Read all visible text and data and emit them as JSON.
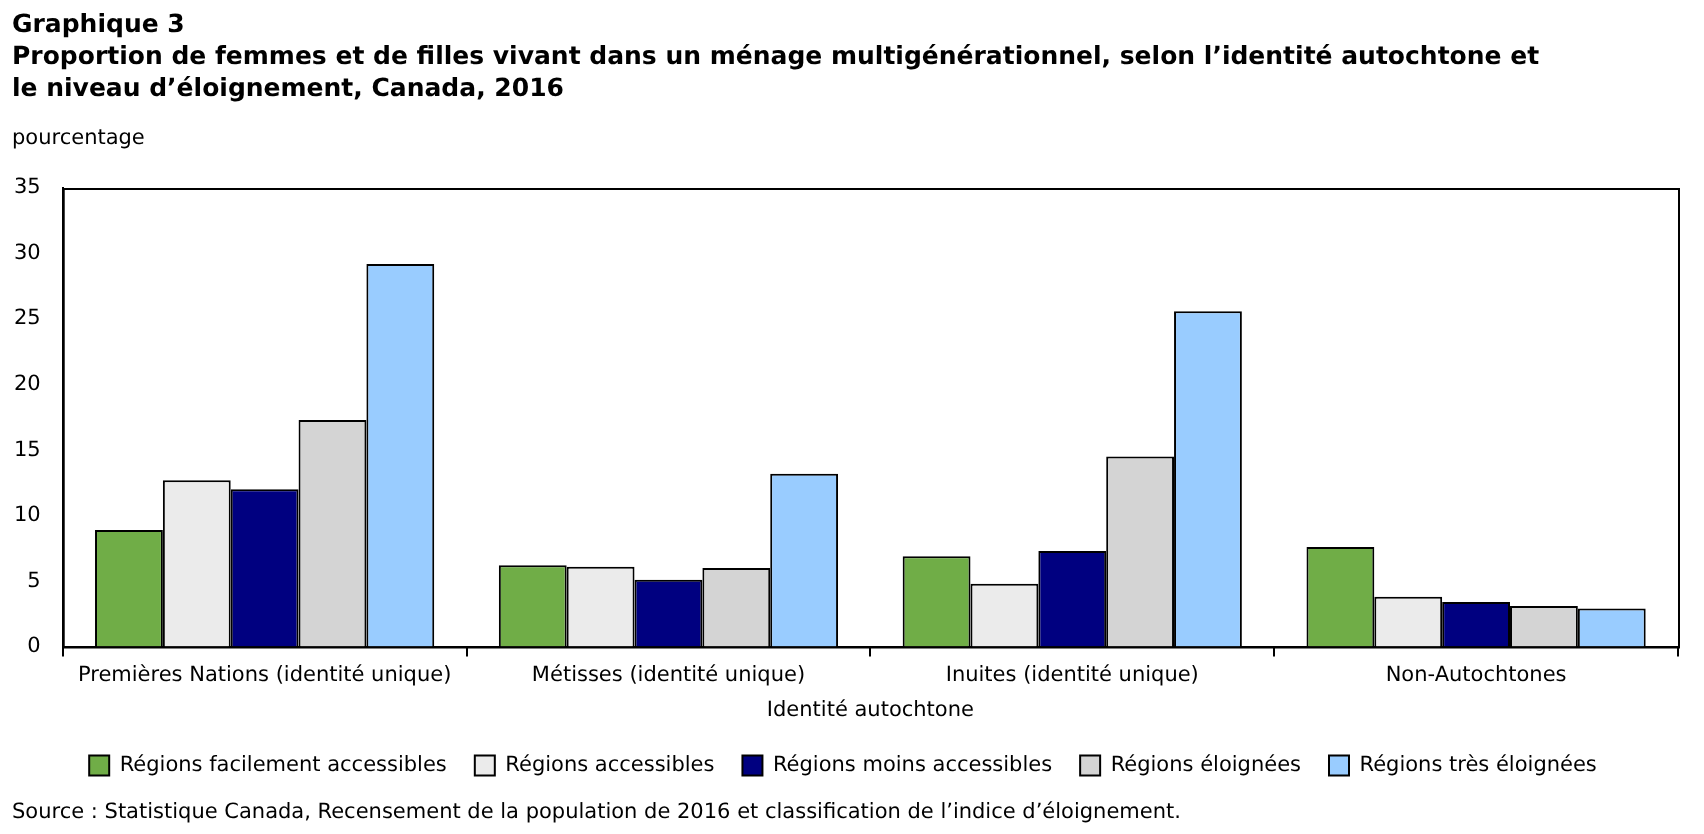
{
  "chart_data": {
    "type": "bar",
    "title": "Graphique 3",
    "subtitle": "Proportion de femmes et de filles vivant dans un ménage multigénérationnel,  selon l’identité autochtone et le niveau d’éloignement, Canada, 2016",
    "ylabel": "pourcentage",
    "xlabel": "Identité autochtone",
    "categories": [
      "Premières Nations (identité unique)",
      "Métisses (identité unique)",
      "Inuites (identité unique)",
      "Non-Autochtones"
    ],
    "series": [
      {
        "name": "Régions facilement accessibles",
        "color": "#70ad47",
        "values": [
          8.9,
          6.2,
          6.9,
          7.6
        ]
      },
      {
        "name": "Régions accessibles",
        "color": "#ebebeb",
        "values": [
          12.7,
          6.1,
          4.8,
          3.8
        ]
      },
      {
        "name": "Régions moins accessibles",
        "color": "#000080",
        "values": [
          12.0,
          5.1,
          7.3,
          3.4
        ]
      },
      {
        "name": "Régions éloignées",
        "color": "#d4d4d4",
        "values": [
          17.3,
          6.0,
          14.5,
          3.1
        ]
      },
      {
        "name": "Régions très éloignées",
        "color": "#99ccff",
        "values": [
          29.2,
          13.2,
          25.6,
          2.9
        ]
      }
    ],
    "ylim": [
      0,
      35
    ],
    "yticks": [
      0,
      5,
      10,
      15,
      20,
      25,
      30,
      35
    ],
    "grid": false,
    "legend": "bottom",
    "annotations": [
      "Source : Statistique Canada, Recensement de la population de 2016 et classification de l’indice d’éloignement."
    ]
  }
}
